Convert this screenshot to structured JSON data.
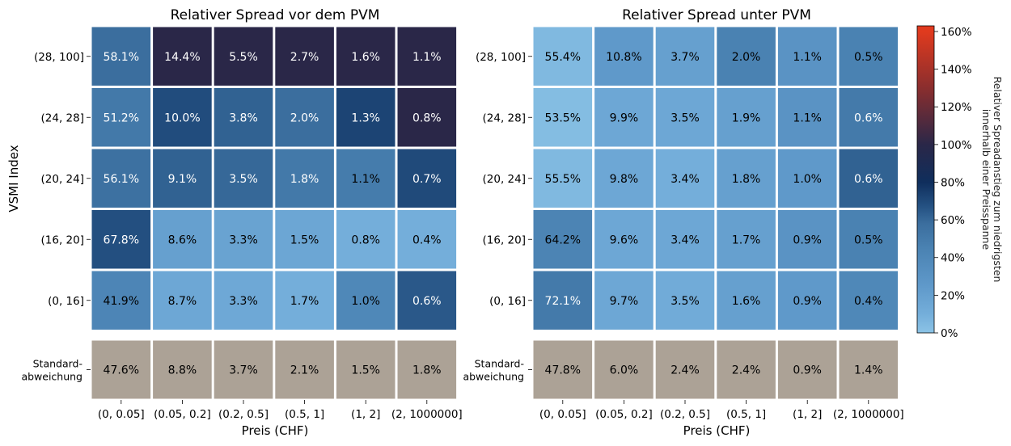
{
  "colors": {
    "std_cell": "#ACA296",
    "grid_line": "#ffffff",
    "colormap": [
      {
        "v": 0,
        "c": "#8BC3E6"
      },
      {
        "v": 10,
        "c": "#74AEDA"
      },
      {
        "v": 25,
        "c": "#5F99CA"
      },
      {
        "v": 45,
        "c": "#4A82B2"
      },
      {
        "v": 58,
        "c": "#3B6E9E"
      },
      {
        "v": 68,
        "c": "#234F80"
      },
      {
        "v": 80,
        "c": "#0F2E5C"
      },
      {
        "v": 100,
        "c": "#2A2748"
      },
      {
        "v": 130,
        "c": "#8A2E2E"
      },
      {
        "v": 160,
        "c": "#E03A1E"
      }
    ]
  },
  "chart_data": [
    {
      "type": "heatmap",
      "title": "Relativer Spread vor dem PVM",
      "xlabel": "Preis (CHF)",
      "ylabel": "VSMI Index",
      "x_categories": [
        "(0, 0.05]",
        "(0.05, 0.2]",
        "(0.2, 0.5]",
        "(0.5, 1]",
        "(1, 2]",
        "(2, 1000000]"
      ],
      "y_categories": [
        "(28, 100]",
        "(24, 28]",
        "(20, 24]",
        "(16, 20]",
        "(0, 16]"
      ],
      "color_values": [
        [
          58,
          100,
          100,
          100,
          100,
          100
        ],
        [
          51,
          69,
          62,
          58,
          72,
          100
        ],
        [
          56,
          62,
          60,
          51,
          49,
          70
        ],
        [
          68,
          20,
          18,
          16,
          10,
          10
        ],
        [
          42,
          15,
          14,
          10,
          40,
          65
        ]
      ],
      "value_labels": [
        [
          "58.1%",
          "14.4%",
          "5.5%",
          "2.7%",
          "1.6%",
          "1.1%"
        ],
        [
          "51.2%",
          "10.0%",
          "3.8%",
          "2.0%",
          "1.3%",
          "0.8%"
        ],
        [
          "56.1%",
          "9.1%",
          "3.5%",
          "1.8%",
          "1.1%",
          "0.7%"
        ],
        [
          "67.8%",
          "8.6%",
          "3.3%",
          "1.5%",
          "0.8%",
          "0.4%"
        ],
        [
          "41.9%",
          "8.7%",
          "3.3%",
          "1.7%",
          "1.0%",
          "0.6%"
        ]
      ],
      "std_row_label": [
        "Standard-",
        "abweichung"
      ],
      "std_values": [
        "47.6%",
        "8.8%",
        "3.7%",
        "2.1%",
        "1.5%",
        "1.8%"
      ]
    },
    {
      "type": "heatmap",
      "title": "Relativer Spread unter PVM",
      "xlabel": "Preis (CHF)",
      "ylabel": "",
      "x_categories": [
        "(0, 0.05]",
        "(0.05, 0.2]",
        "(0.2, 0.5]",
        "(0.5, 1]",
        "(1, 2]",
        "(2, 1000000]"
      ],
      "y_categories": [
        "(28, 100]",
        "(24, 28]",
        "(20, 24]",
        "(16, 20]",
        "(0, 16]"
      ],
      "color_values": [
        [
          5,
          25,
          20,
          45,
          30,
          45
        ],
        [
          3,
          15,
          15,
          20,
          30,
          50
        ],
        [
          5,
          15,
          10,
          20,
          25,
          62
        ],
        [
          43,
          15,
          15,
          20,
          30,
          45
        ],
        [
          50,
          15,
          12,
          20,
          25,
          40
        ]
      ],
      "value_labels": [
        [
          "55.4%",
          "10.8%",
          "3.7%",
          "2.0%",
          "1.1%",
          "0.5%"
        ],
        [
          "53.5%",
          "9.9%",
          "3.5%",
          "1.9%",
          "1.1%",
          "0.6%"
        ],
        [
          "55.5%",
          "9.8%",
          "3.4%",
          "1.8%",
          "1.0%",
          "0.6%"
        ],
        [
          "64.2%",
          "9.6%",
          "3.4%",
          "1.7%",
          "0.9%",
          "0.5%"
        ],
        [
          "72.1%",
          "9.7%",
          "3.5%",
          "1.6%",
          "0.9%",
          "0.4%"
        ]
      ],
      "std_row_label": [
        "Standard-",
        "abweichung"
      ],
      "std_values": [
        "47.8%",
        "6.0%",
        "2.4%",
        "2.4%",
        "0.9%",
        "1.4%"
      ]
    }
  ],
  "colorbar": {
    "label_lines": [
      "Relativer Spreadanstieg zum niedrigsten",
      "innerhalb einer Preisspanne"
    ],
    "ticks": [
      "0%",
      "20%",
      "40%",
      "60%",
      "80%",
      "100%",
      "120%",
      "140%",
      "160%"
    ],
    "tick_values": [
      0,
      20,
      40,
      60,
      80,
      100,
      120,
      140,
      160
    ],
    "range": [
      0,
      163
    ]
  }
}
